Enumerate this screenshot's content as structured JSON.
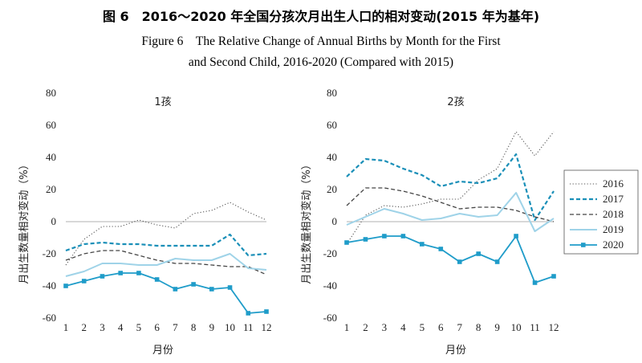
{
  "figure": {
    "title_cn": "图 6　2016～2020 年全国分孩次月出生人口的相对变动(2015 年为基年)",
    "title_en_line1": "Figure 6　The Relative Change of Annual Births by Month for the First",
    "title_en_line2": "and Second Child, 2016-2020 (Compared with 2015)"
  },
  "chart_data": [
    {
      "type": "line",
      "title": "1孩",
      "xlabel": "月份",
      "ylabel": "月出生数量相对变动（%）",
      "ylim": [
        -60,
        80
      ],
      "yticks": [
        -60,
        -40,
        -20,
        0,
        20,
        40,
        60,
        80
      ],
      "x": [
        1,
        2,
        3,
        4,
        5,
        6,
        7,
        8,
        9,
        10,
        11,
        12
      ],
      "series": [
        {
          "name": "2016",
          "values": [
            -27,
            -11,
            -3,
            -3,
            1,
            -2,
            -4,
            5,
            7,
            12,
            6,
            1
          ]
        },
        {
          "name": "2017",
          "values": [
            -18,
            -14,
            -13,
            -14,
            -14,
            -15,
            -15,
            -15,
            -15,
            -8,
            -21,
            -20
          ]
        },
        {
          "name": "2018",
          "values": [
            -24,
            -20,
            -18,
            -18,
            -21,
            -24,
            -26,
            -26,
            -27,
            -28,
            -28,
            -33
          ]
        },
        {
          "name": "2019",
          "values": [
            -34,
            -31,
            -26,
            -26,
            -27,
            -27,
            -23,
            -24,
            -24,
            -20,
            -29,
            -30
          ]
        },
        {
          "name": "2020",
          "values": [
            -40,
            -37,
            -34,
            -32,
            -32,
            -36,
            -42,
            -39,
            -42,
            -41,
            -57,
            -56
          ]
        }
      ]
    },
    {
      "type": "line",
      "title": "2孩",
      "xlabel": "月份",
      "ylabel": "月出生数量相对变动（%）",
      "ylim": [
        -60,
        80
      ],
      "yticks": [
        -60,
        -40,
        -20,
        0,
        20,
        40,
        60,
        80
      ],
      "x": [
        1,
        2,
        3,
        4,
        5,
        6,
        7,
        8,
        9,
        10,
        11,
        12
      ],
      "series": [
        {
          "name": "2016",
          "values": [
            -14,
            4,
            10,
            9,
            11,
            14,
            14,
            26,
            33,
            56,
            41,
            56
          ]
        },
        {
          "name": "2017",
          "values": [
            28,
            39,
            38,
            33,
            29,
            22,
            25,
            24,
            27,
            42,
            1,
            19
          ]
        },
        {
          "name": "2018",
          "values": [
            10,
            21,
            21,
            19,
            16,
            12,
            8,
            9,
            9,
            7,
            3,
            0
          ]
        },
        {
          "name": "2019",
          "values": [
            -2,
            3,
            8,
            5,
            1,
            2,
            5,
            3,
            4,
            18,
            -6,
            2
          ]
        },
        {
          "name": "2020",
          "values": [
            -13,
            -11,
            -9,
            -9,
            -14,
            -17,
            -25,
            -20,
            -25,
            -9,
            -38,
            -34
          ]
        }
      ]
    }
  ],
  "legend": {
    "position": "right",
    "entries": [
      "2016",
      "2017",
      "2018",
      "2019",
      "2020"
    ]
  },
  "colors": {
    "y2016": "#555555",
    "y2017": "#1a8fb8",
    "y2018": "#444444",
    "y2019": "#9fd3e8",
    "y2020": "#1f9cc9"
  }
}
